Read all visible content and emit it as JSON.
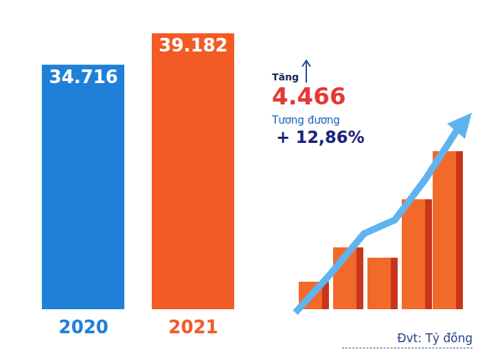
{
  "chart_data": {
    "type": "bar",
    "categories": [
      "2020",
      "2021"
    ],
    "values": [
      34716,
      39182
    ],
    "value_labels": [
      "34.716",
      "39.182"
    ],
    "colors": [
      "#1f80d8",
      "#f25a26"
    ],
    "ylim": [
      0,
      40000
    ],
    "data_labels": true,
    "tick_labels": "x",
    "grid": false,
    "annotations": [
      "Tăng",
      "4.466",
      "Tương đương",
      "+ 12,86%",
      "Đvt: Tỷ đồng"
    ]
  }
}
